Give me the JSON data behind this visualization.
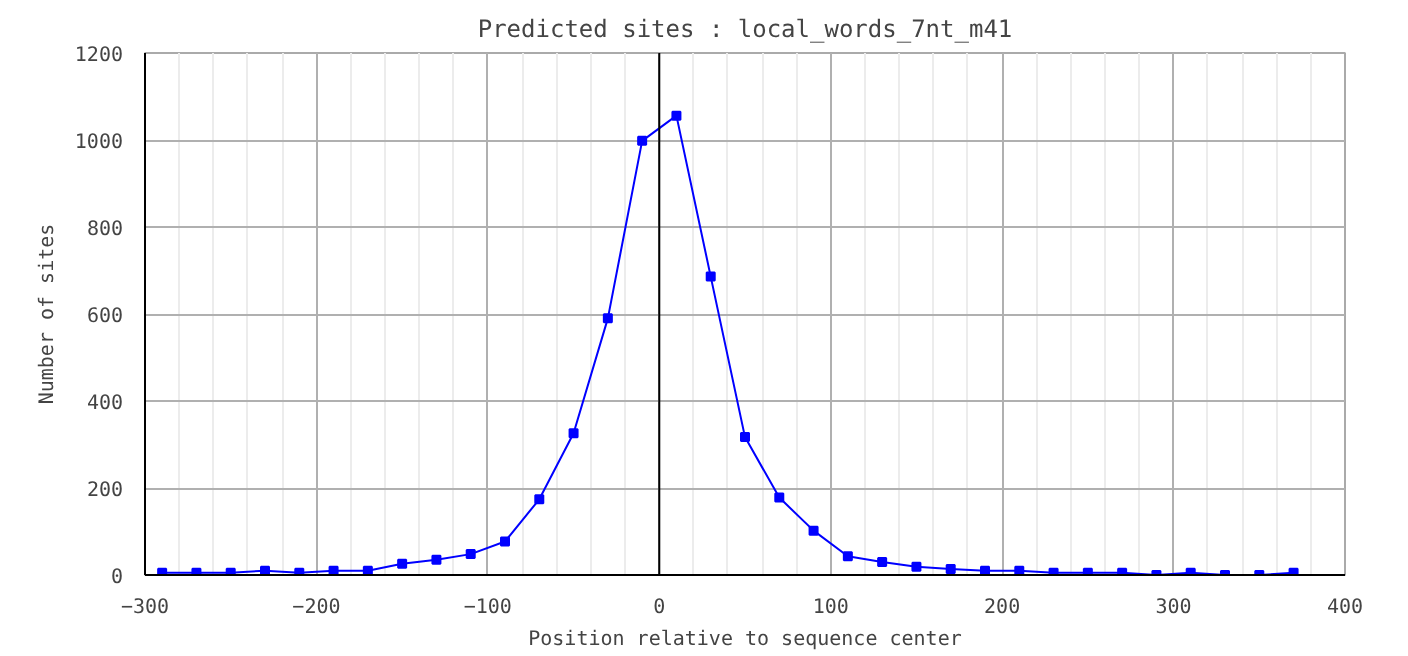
{
  "chart_data": {
    "type": "line",
    "title": "Predicted sites : local_words_7nt_m41",
    "xlabel": "Position relative to sequence center",
    "ylabel": "Number of sites",
    "x": [
      -290,
      -270,
      -250,
      -230,
      -210,
      -190,
      -170,
      -150,
      -130,
      -110,
      -90,
      -70,
      -50,
      -30,
      -10,
      10,
      30,
      50,
      70,
      90,
      110,
      130,
      150,
      170,
      190,
      210,
      230,
      250,
      270,
      290,
      310,
      330,
      350,
      370
    ],
    "series": [
      {
        "color": "#0000ff",
        "values": [
          5,
          5,
          5,
          10,
          5,
          10,
          10,
          26,
          35,
          48,
          77,
          174,
          326,
          590,
          998,
          1056,
          686,
          317,
          178,
          102,
          43,
          30,
          19,
          14,
          10,
          10,
          5,
          5,
          5,
          0,
          5,
          0,
          0,
          5
        ]
      }
    ],
    "xlim": [
      -300,
      400
    ],
    "xticks": [
      -300,
      -200,
      -100,
      0,
      100,
      200,
      300,
      400
    ],
    "ylim": [
      0,
      1200
    ],
    "yticks": [
      0,
      200,
      400,
      600,
      800,
      1000,
      1200
    ],
    "ref_lines": [
      {
        "axis": "x",
        "value": 0,
        "color": "#000000"
      }
    ],
    "grid": true,
    "marker": "square",
    "line_style": "solid"
  }
}
